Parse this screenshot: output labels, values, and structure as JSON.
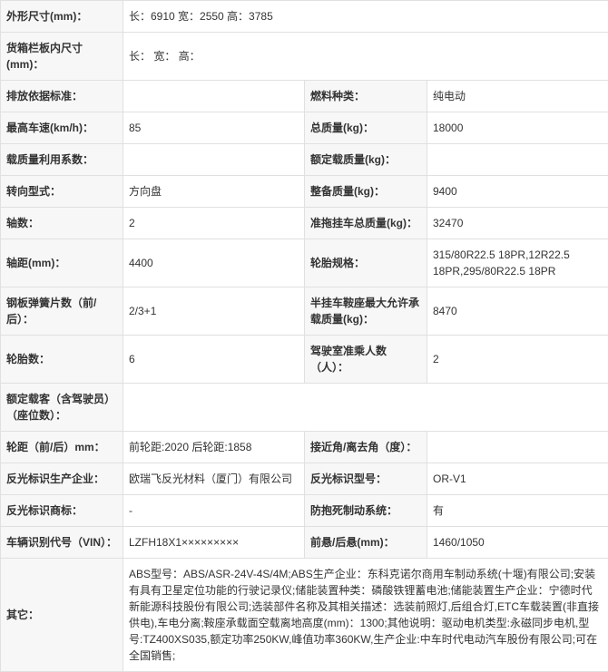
{
  "rows": [
    {
      "type": "full",
      "label": "外形尺寸(mm)：",
      "value": "长：6910 宽：2550 高：3785"
    },
    {
      "type": "full",
      "label": "货箱栏板内尺寸(mm)：",
      "value": "长： 宽： 高："
    },
    {
      "type": "pair",
      "l1": "排放依据标准：",
      "v1": "",
      "l2": "燃料种类：",
      "v2": "纯电动"
    },
    {
      "type": "pair",
      "l1": "最高车速(km/h)：",
      "v1": "85",
      "l2": "总质量(kg)：",
      "v2": "18000"
    },
    {
      "type": "pair",
      "l1": "载质量利用系数：",
      "v1": "",
      "l2": "额定载质量(kg)：",
      "v2": ""
    },
    {
      "type": "pair",
      "l1": "转向型式：",
      "v1": "方向盘",
      "l2": "整备质量(kg)：",
      "v2": "9400"
    },
    {
      "type": "pair",
      "l1": "轴数：",
      "v1": "2",
      "l2": "准拖挂车总质量(kg)：",
      "v2": "32470"
    },
    {
      "type": "pair",
      "l1": "轴距(mm)：",
      "v1": "4400",
      "l2": "轮胎规格：",
      "v2": "315/80R22.5 18PR,12R22.5 18PR,295/80R22.5 18PR"
    },
    {
      "type": "pair",
      "l1": "钢板弹簧片数（前/后）：",
      "v1": "2/3+1",
      "l2": "半挂车鞍座最大允许承载质量(kg)：",
      "v2": "8470"
    },
    {
      "type": "pair",
      "l1": "轮胎数：",
      "v1": "6",
      "l2": "驾驶室准乘人数（人）：",
      "v2": "2"
    },
    {
      "type": "full",
      "label": "额定载客（含驾驶员）（座位数）：",
      "value": ""
    },
    {
      "type": "pair",
      "l1": "轮距（前/后）mm：",
      "v1": "前轮距:2020 后轮距:1858",
      "l2": "接近角/离去角（度）：",
      "v2": ""
    },
    {
      "type": "pair",
      "l1": "反光标识生产企业：",
      "v1": "欧瑞飞反光材料（厦门）有限公司",
      "l2": "反光标识型号：",
      "v2": "OR-V1"
    },
    {
      "type": "pair",
      "l1": "反光标识商标：",
      "v1": "-",
      "l2": "防抱死制动系统：",
      "v2": "有"
    },
    {
      "type": "pair",
      "l1": "车辆识别代号（VIN）：",
      "v1": "LZFH18X1×××××××××",
      "l2": "前悬/后悬(mm)：",
      "v2": "1460/1050"
    },
    {
      "type": "full",
      "label": "其它：",
      "value": "ABS型号：ABS/ASR-24V-4S/4M;ABS生产企业：东科克诺尔商用车制动系统(十堰)有限公司;安装有具有卫星定位功能的行驶记录仪;储能装置种类：磷酸铁锂蓄电池;储能装置生产企业：宁德时代新能源科技股份有限公司;选装部件名称及其相关描述：选装前照灯,后组合灯,ETC车载装置(非直接供电),车电分离;鞍座承载面空载离地高度(mm)：1300;其他说明：驱动电机类型:永磁同步电机,型号:TZ400XS035,额定功率250KW,峰值功率360KW,生产企业:中车时代电动汽车股份有限公司;可在全国销售;"
    }
  ]
}
